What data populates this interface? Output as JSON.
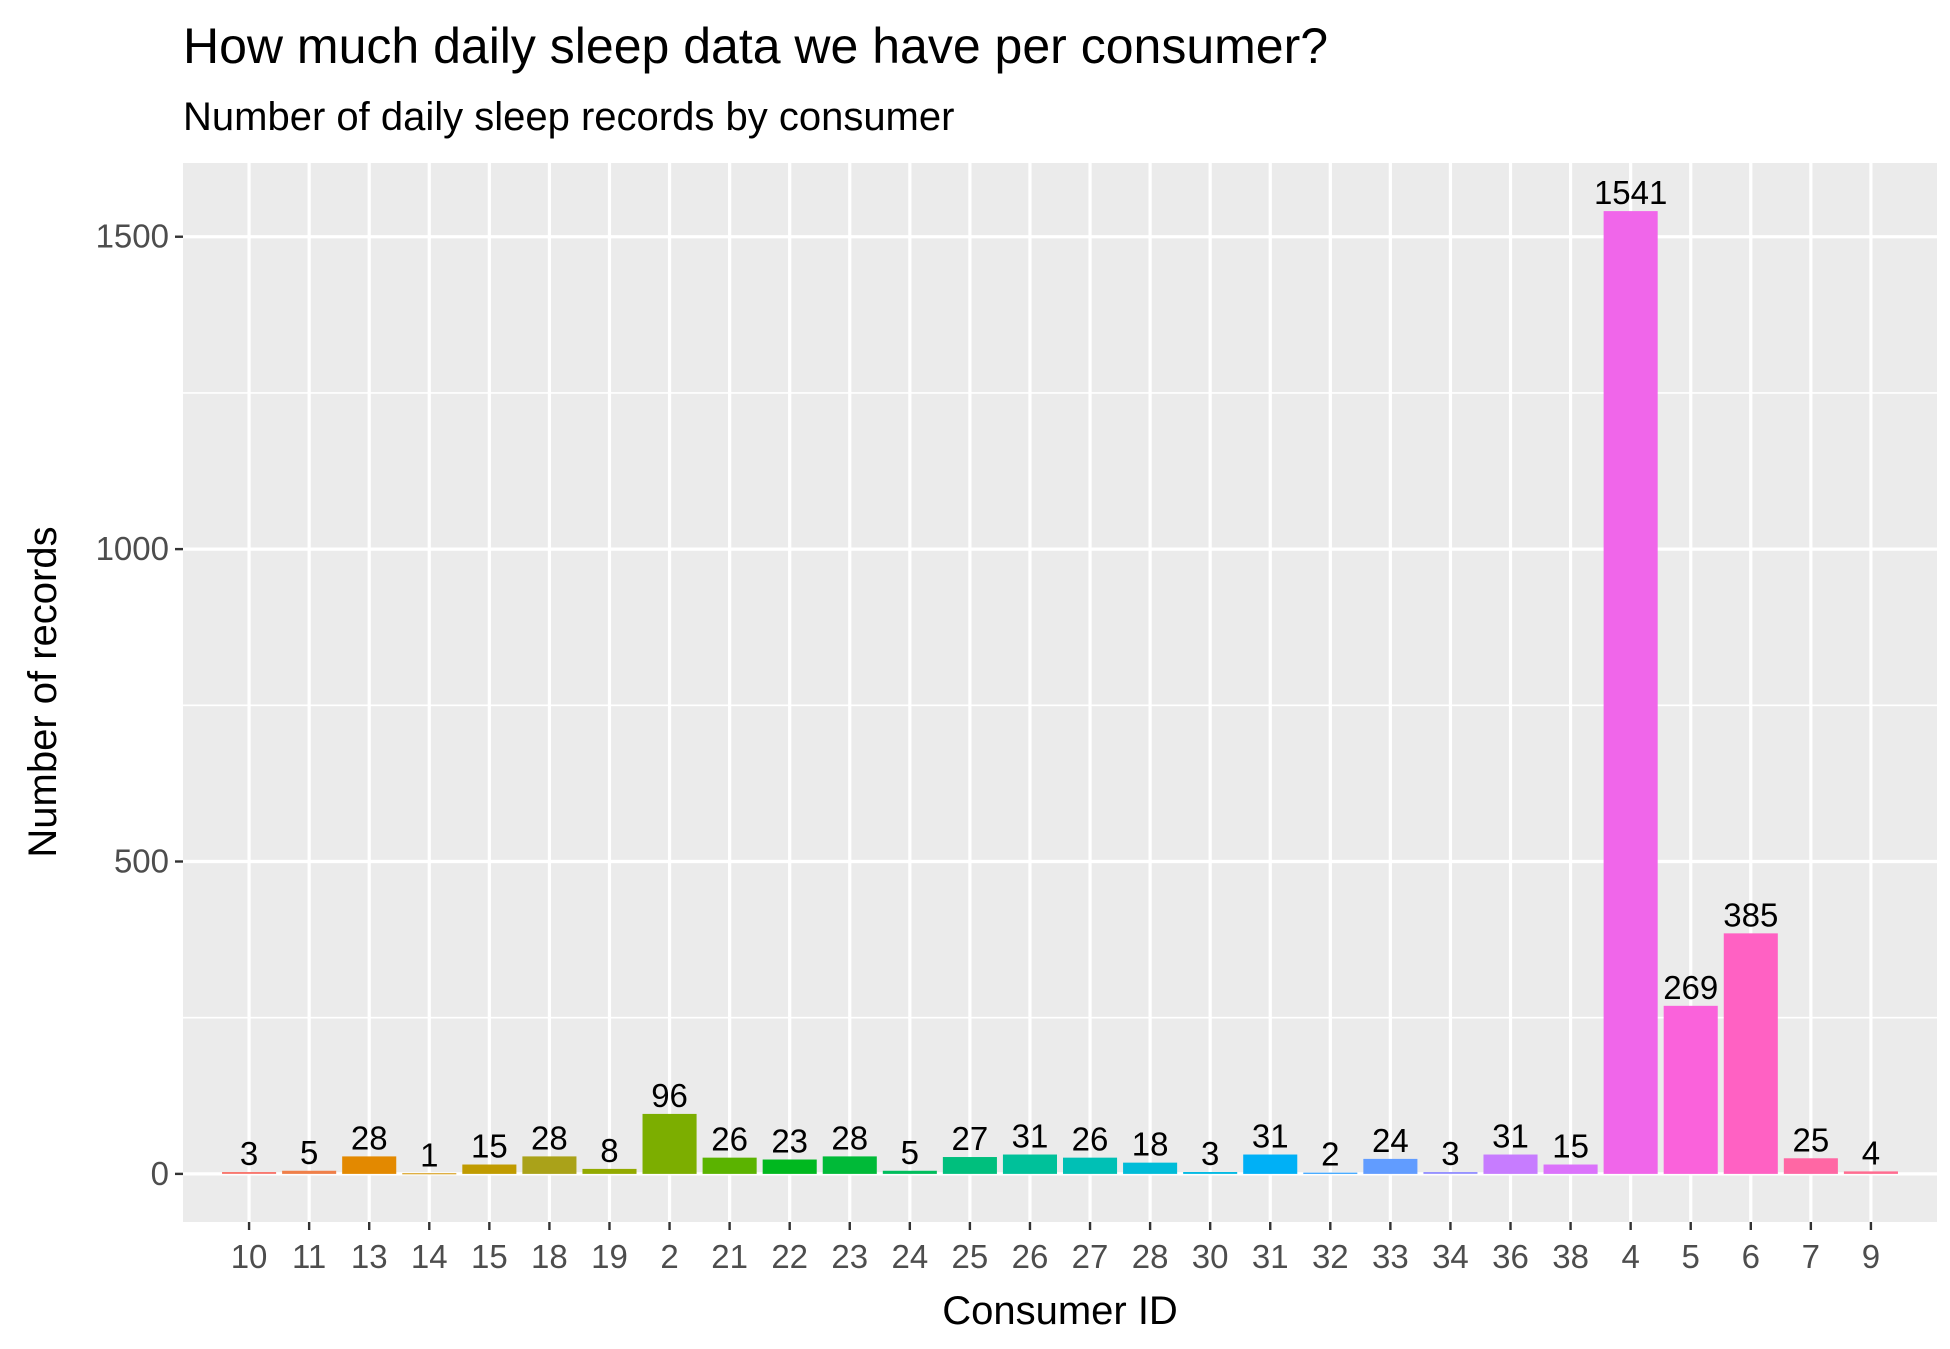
{
  "chart_data": {
    "type": "bar",
    "title": "How much daily sleep data we have per consumer?",
    "subtitle": "Number of daily sleep records by consumer",
    "xlabel": "Consumer ID",
    "ylabel": "Number of records",
    "categories": [
      "10",
      "11",
      "13",
      "14",
      "15",
      "18",
      "19",
      "2",
      "21",
      "22",
      "23",
      "24",
      "25",
      "26",
      "27",
      "28",
      "30",
      "31",
      "32",
      "33",
      "34",
      "36",
      "38",
      "4",
      "5",
      "6",
      "7",
      "9"
    ],
    "values": [
      3,
      5,
      28,
      1,
      15,
      28,
      8,
      96,
      26,
      23,
      28,
      5,
      27,
      31,
      26,
      18,
      3,
      31,
      2,
      24,
      3,
      31,
      15,
      1541,
      269,
      385,
      25,
      4
    ],
    "data_labels": [
      "3",
      "5",
      "28",
      "1",
      "15",
      "28",
      "8",
      "96",
      "26",
      "23",
      "28",
      "5",
      "27",
      "31",
      "26",
      "18",
      "3",
      "31",
      "2",
      "24",
      "3",
      "31",
      "15",
      "1541",
      "269",
      "385",
      "25",
      "4"
    ],
    "colors": [
      "#F8766D",
      "#EF7F49",
      "#E38900",
      "#D39200",
      "#C09B00",
      "#AAA219",
      "#93AA00",
      "#7CAE00",
      "#5BB300",
      "#00B81F",
      "#00BA38",
      "#00BD5C",
      "#00BF7D",
      "#00C19A",
      "#00C0B5",
      "#00BCD8",
      "#00B9E3",
      "#00B0F6",
      "#35A2FF",
      "#619CFF",
      "#9590FF",
      "#C77CFF",
      "#DB72FB",
      "#F066EA",
      "#FA62DB",
      "#FF61C3",
      "#FF67A4",
      "#FF6C90"
    ],
    "yticks": [
      "0",
      "500",
      "1000",
      "1500"
    ],
    "ylim": [
      -77,
      1618
    ],
    "grid": true,
    "legend": "none"
  }
}
